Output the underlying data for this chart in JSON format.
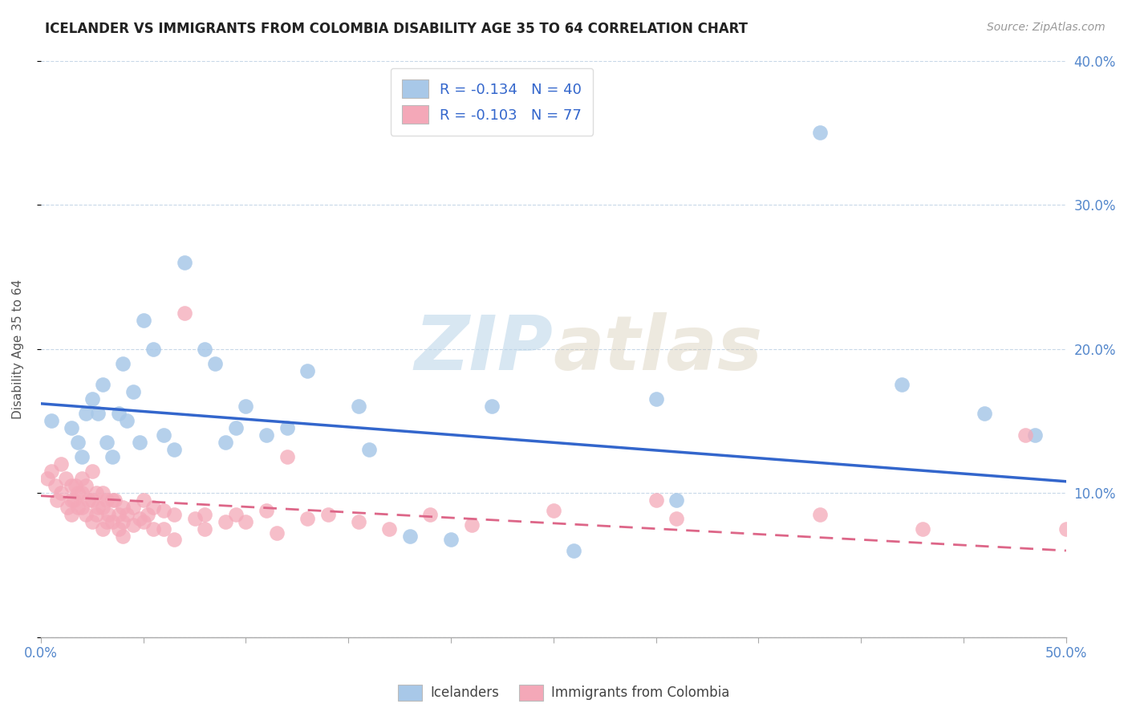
{
  "title": "ICELANDER VS IMMIGRANTS FROM COLOMBIA DISABILITY AGE 35 TO 64 CORRELATION CHART",
  "source": "Source: ZipAtlas.com",
  "ylabel": "Disability Age 35 to 64",
  "xlim": [
    0.0,
    0.5
  ],
  "ylim": [
    0.0,
    0.4
  ],
  "xticks": [
    0.0,
    0.05,
    0.1,
    0.15,
    0.2,
    0.25,
    0.3,
    0.35,
    0.4,
    0.45,
    0.5
  ],
  "xtick_labels_show": [
    "0.0%",
    "",
    "",
    "",
    "",
    "",
    "",
    "",
    "",
    "",
    "50.0%"
  ],
  "yticks": [
    0.0,
    0.1,
    0.2,
    0.3,
    0.4
  ],
  "ytick_labels_right": [
    "",
    "10.0%",
    "20.0%",
    "30.0%",
    "40.0%"
  ],
  "blue_R": -0.134,
  "blue_N": 40,
  "pink_R": -0.103,
  "pink_N": 77,
  "blue_color": "#a8c8e8",
  "pink_color": "#f4a8b8",
  "blue_line_color": "#3366cc",
  "pink_line_color": "#dd6688",
  "legend_label_blue": "Icelanders",
  "legend_label_pink": "Immigrants from Colombia",
  "watermark_zip": "ZIP",
  "watermark_atlas": "atlas",
  "blue_line_start_y": 0.162,
  "blue_line_end_y": 0.108,
  "pink_line_start_y": 0.098,
  "pink_line_end_y": 0.06,
  "blue_scatter_x": [
    0.005,
    0.015,
    0.018,
    0.02,
    0.022,
    0.025,
    0.028,
    0.03,
    0.032,
    0.035,
    0.038,
    0.04,
    0.042,
    0.045,
    0.048,
    0.05,
    0.055,
    0.06,
    0.065,
    0.07,
    0.08,
    0.085,
    0.09,
    0.095,
    0.1,
    0.11,
    0.12,
    0.13,
    0.155,
    0.16,
    0.18,
    0.2,
    0.22,
    0.26,
    0.3,
    0.31,
    0.38,
    0.42,
    0.46,
    0.485
  ],
  "blue_scatter_y": [
    0.15,
    0.145,
    0.135,
    0.125,
    0.155,
    0.165,
    0.155,
    0.175,
    0.135,
    0.125,
    0.155,
    0.19,
    0.15,
    0.17,
    0.135,
    0.22,
    0.2,
    0.14,
    0.13,
    0.26,
    0.2,
    0.19,
    0.135,
    0.145,
    0.16,
    0.14,
    0.145,
    0.185,
    0.16,
    0.13,
    0.07,
    0.068,
    0.16,
    0.06,
    0.165,
    0.095,
    0.35,
    0.175,
    0.155,
    0.14
  ],
  "pink_scatter_x": [
    0.003,
    0.005,
    0.007,
    0.008,
    0.01,
    0.01,
    0.012,
    0.013,
    0.015,
    0.015,
    0.015,
    0.016,
    0.017,
    0.018,
    0.018,
    0.02,
    0.02,
    0.02,
    0.022,
    0.022,
    0.023,
    0.025,
    0.025,
    0.025,
    0.027,
    0.027,
    0.028,
    0.03,
    0.03,
    0.03,
    0.032,
    0.032,
    0.033,
    0.035,
    0.035,
    0.036,
    0.038,
    0.038,
    0.04,
    0.04,
    0.04,
    0.042,
    0.045,
    0.045,
    0.048,
    0.05,
    0.05,
    0.052,
    0.055,
    0.055,
    0.06,
    0.06,
    0.065,
    0.065,
    0.07,
    0.075,
    0.08,
    0.08,
    0.09,
    0.095,
    0.1,
    0.11,
    0.115,
    0.12,
    0.13,
    0.14,
    0.155,
    0.17,
    0.19,
    0.21,
    0.25,
    0.3,
    0.31,
    0.38,
    0.43,
    0.48,
    0.5
  ],
  "pink_scatter_y": [
    0.11,
    0.115,
    0.105,
    0.095,
    0.12,
    0.1,
    0.11,
    0.09,
    0.105,
    0.095,
    0.085,
    0.095,
    0.105,
    0.1,
    0.09,
    0.11,
    0.1,
    0.09,
    0.105,
    0.085,
    0.095,
    0.115,
    0.095,
    0.08,
    0.1,
    0.085,
    0.09,
    0.1,
    0.09,
    0.075,
    0.095,
    0.08,
    0.085,
    0.095,
    0.08,
    0.095,
    0.085,
    0.075,
    0.09,
    0.08,
    0.07,
    0.085,
    0.09,
    0.078,
    0.082,
    0.095,
    0.08,
    0.085,
    0.09,
    0.075,
    0.088,
    0.075,
    0.085,
    0.068,
    0.225,
    0.082,
    0.085,
    0.075,
    0.08,
    0.085,
    0.08,
    0.088,
    0.072,
    0.125,
    0.082,
    0.085,
    0.08,
    0.075,
    0.085,
    0.078,
    0.088,
    0.095,
    0.082,
    0.085,
    0.075,
    0.14,
    0.075
  ]
}
